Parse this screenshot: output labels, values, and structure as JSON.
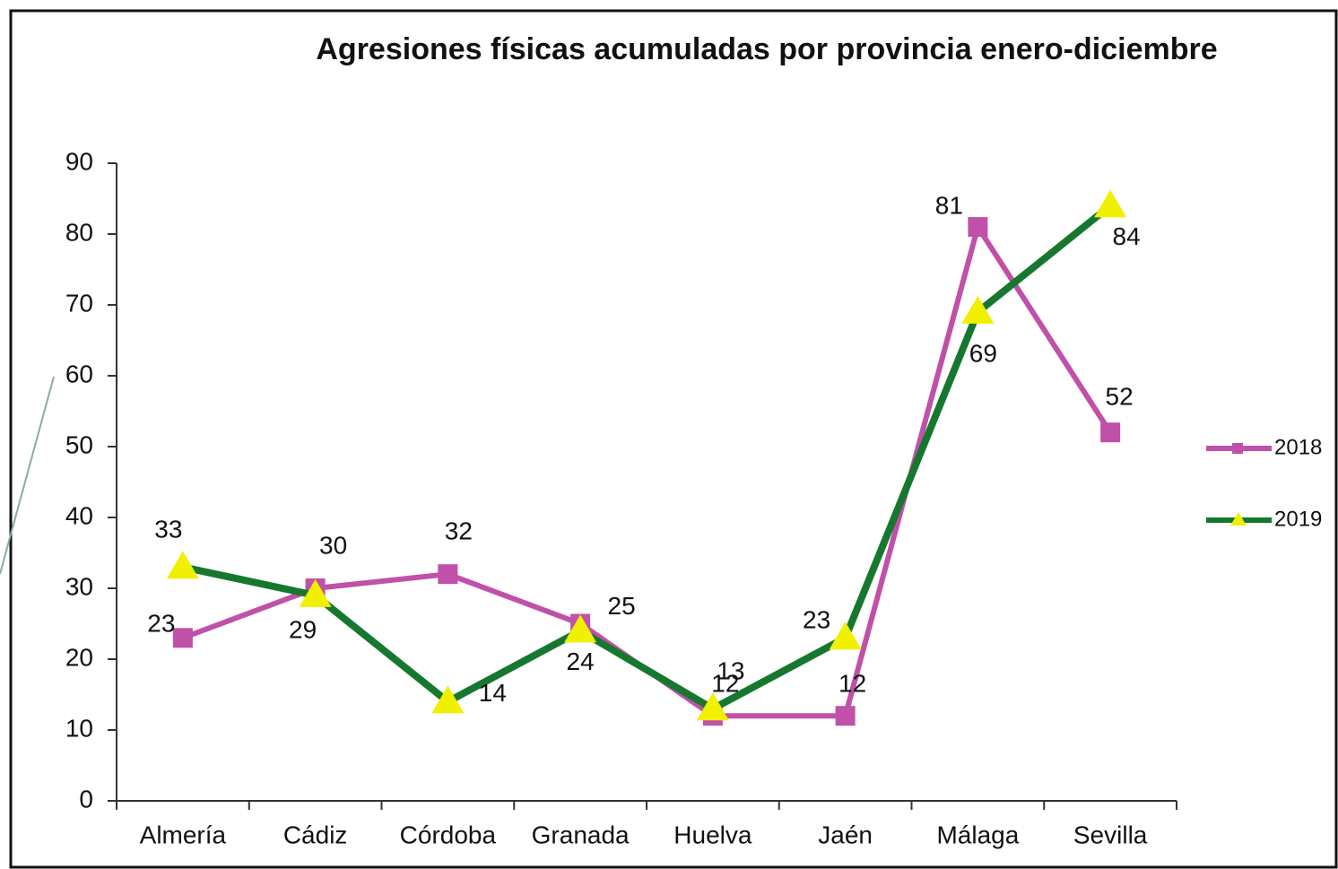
{
  "chart_data": {
    "type": "line",
    "title": "Agresiones físicas acumuladas por provincia enero-diciembre",
    "categories": [
      "Almería",
      "Cádiz",
      "Córdoba",
      "Granada",
      "Huelva",
      "Jaén",
      "Málaga",
      "Sevilla"
    ],
    "series": [
      {
        "name": "2018",
        "color": "#c050a8",
        "marker": "square",
        "values": [
          23,
          30,
          32,
          25,
          12,
          12,
          81,
          52
        ]
      },
      {
        "name": "2019",
        "color": "#16782e",
        "marker": "triangle",
        "marker_color": "#f0f000",
        "values": [
          33,
          29,
          14,
          24,
          13,
          23,
          69,
          84
        ]
      }
    ],
    "ylim": [
      0,
      90
    ],
    "yticks": [
      0,
      10,
      20,
      30,
      40,
      50,
      60,
      70,
      80,
      90
    ],
    "grid": false,
    "legend": "right"
  }
}
